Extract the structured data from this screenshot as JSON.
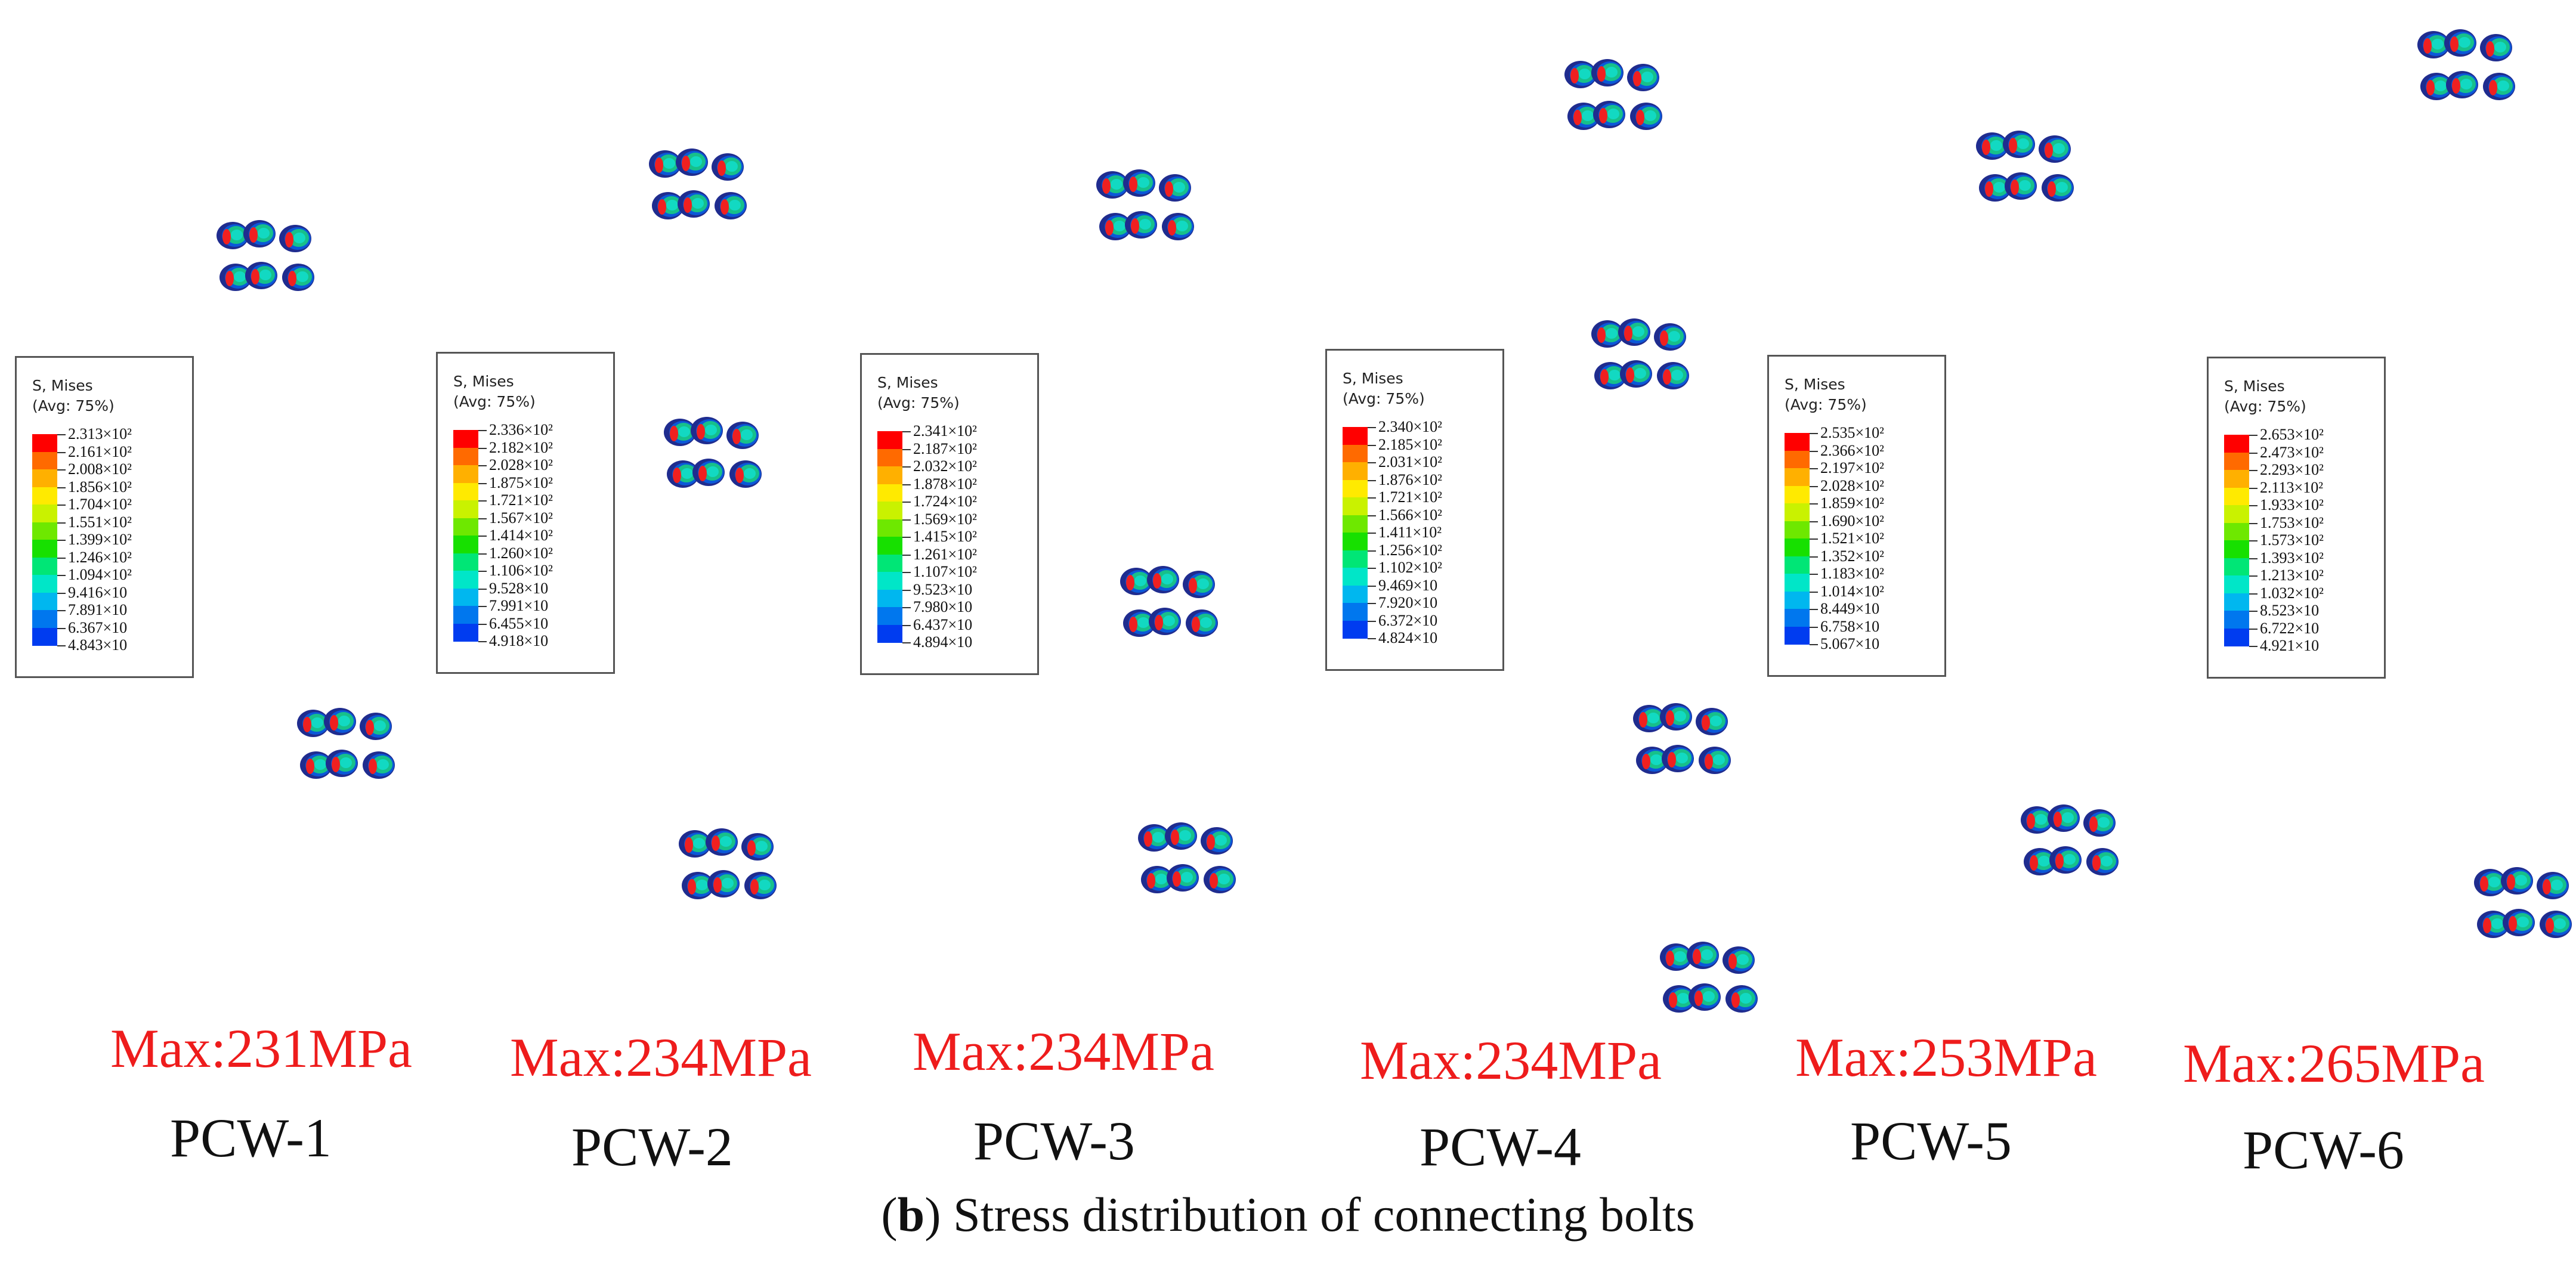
{
  "caption": {
    "open": "(",
    "letter": "b",
    "close": ")",
    "text": "Stress distribution of connecting bolts"
  },
  "legend_title": "S, Mises",
  "legend_subtitle": "(Avg: 75%)",
  "legend_colors": [
    "#ff0000",
    "#ff6a00",
    "#ffb000",
    "#ffea00",
    "#c9f200",
    "#6ee800",
    "#17e000",
    "#00e676",
    "#00e6c8",
    "#00b7ef",
    "#0077ee",
    "#003cf0",
    "#0010ff"
  ],
  "panels": [
    {
      "name": "PCW-1",
      "max": "Max:231MPa",
      "values": [
        "2.313×10²",
        "2.161×10²",
        "2.008×10²",
        "1.856×10²",
        "1.704×10²",
        "1.551×10²",
        "1.399×10²",
        "1.246×10²",
        "1.094×10²",
        "9.416×10",
        "7.891×10",
        "6.367×10",
        "4.843×10"
      ]
    },
    {
      "name": "PCW-2",
      "max": "Max:234MPa",
      "values": [
        "2.336×10²",
        "2.182×10²",
        "2.028×10²",
        "1.875×10²",
        "1.721×10²",
        "1.567×10²",
        "1.414×10²",
        "1.260×10²",
        "1.106×10²",
        "9.528×10",
        "7.991×10",
        "6.455×10",
        "4.918×10"
      ]
    },
    {
      "name": "PCW-3",
      "max": "Max:234MPa",
      "values": [
        "2.341×10²",
        "2.187×10²",
        "2.032×10²",
        "1.878×10²",
        "1.724×10²",
        "1.569×10²",
        "1.415×10²",
        "1.261×10²",
        "1.107×10²",
        "9.523×10",
        "7.980×10",
        "6.437×10",
        "4.894×10"
      ]
    },
    {
      "name": "PCW-4",
      "max": "Max:234MPa",
      "values": [
        "2.340×10²",
        "2.185×10²",
        "2.031×10²",
        "1.876×10²",
        "1.721×10²",
        "1.566×10²",
        "1.411×10²",
        "1.256×10²",
        "1.102×10²",
        "9.469×10",
        "7.920×10",
        "6.372×10",
        "4.824×10"
      ]
    },
    {
      "name": "PCW-5",
      "max": "Max:253MPa",
      "values": [
        "2.535×10²",
        "2.366×10²",
        "2.197×10²",
        "2.028×10²",
        "1.859×10²",
        "1.690×10²",
        "1.521×10²",
        "1.352×10²",
        "1.183×10²",
        "1.014×10²",
        "8.449×10",
        "6.758×10",
        "5.067×10"
      ]
    },
    {
      "name": "PCW-6",
      "max": "Max:265MPa",
      "values": [
        "2.653×10²",
        "2.473×10²",
        "2.293×10²",
        "2.113×10²",
        "1.933×10²",
        "1.753×10²",
        "1.573×10²",
        "1.393×10²",
        "1.213×10²",
        "1.032×10²",
        "8.523×10",
        "6.722×10",
        "4.921×10"
      ]
    }
  ]
}
